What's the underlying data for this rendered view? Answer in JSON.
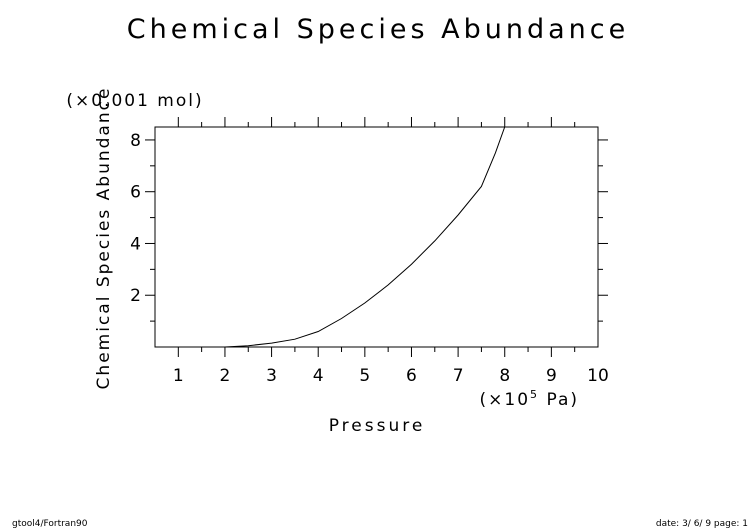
{
  "chart_data": {
    "type": "line",
    "title": "Chemical Species Abundance",
    "xlabel": "Pressure",
    "x_unit_prefix": "(×10",
    "x_unit_exp": "5",
    "x_unit_suffix": " Pa)",
    "ylabel": "Chemical Species Abundance",
    "y_unit": "(×0.001 mol)",
    "xlim": [
      0.5,
      10
    ],
    "ylim": [
      0,
      8.5
    ],
    "xticks": [
      "1",
      "2",
      "3",
      "4",
      "5",
      "6",
      "7",
      "8",
      "9",
      "10"
    ],
    "yticks": [
      "2",
      "4",
      "6",
      "8"
    ],
    "series": [
      {
        "x": [
          0.5,
          1,
          1.5,
          2,
          2.5,
          3,
          3.5,
          4,
          4.5,
          5,
          5.5,
          6,
          6.5,
          7,
          7.5,
          7.8,
          8,
          8.5,
          9,
          9.5,
          10
        ],
        "y": [
          0,
          0,
          0,
          0,
          0.05,
          0.15,
          0.3,
          0.6,
          1.1,
          1.7,
          2.4,
          3.2,
          4.1,
          5.1,
          6.2,
          7.5,
          8.5,
          8.5,
          8.5,
          8.5,
          8.5
        ]
      }
    ],
    "grid": false,
    "legend": "none"
  },
  "footer": {
    "left": "gtool4/Fortran90",
    "right": "date: 3/ 6/ 9 page: 1"
  }
}
